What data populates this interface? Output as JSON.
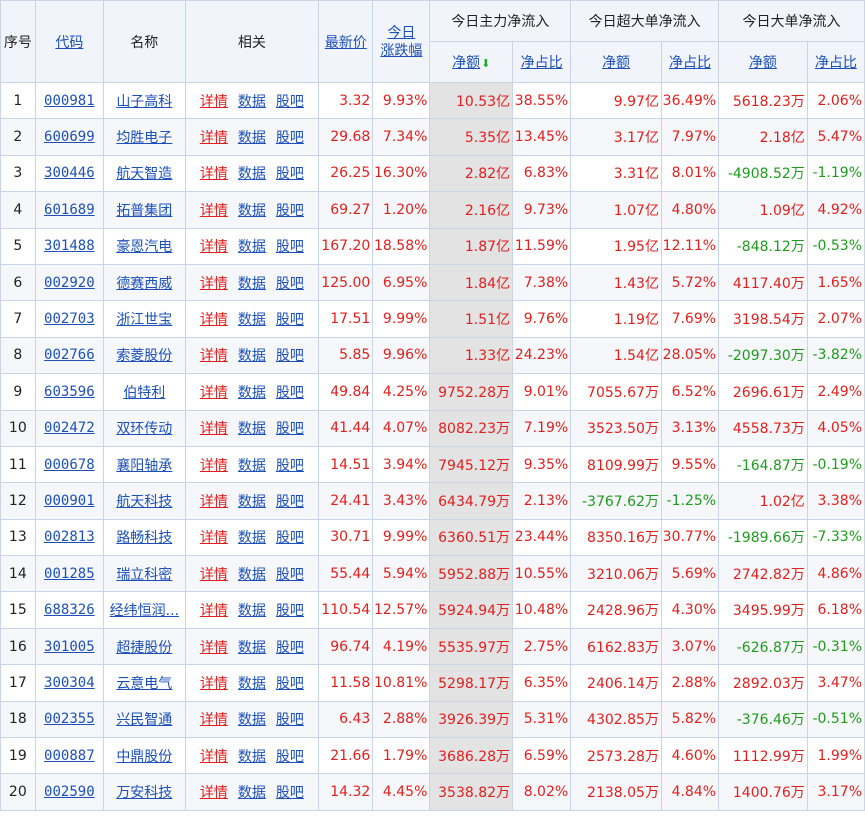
{
  "header": {
    "seq": "序号",
    "code": "代码",
    "name": "名称",
    "related": "相关",
    "price": "最新价",
    "change_top": "今日",
    "change_bottom": "涨跌幅",
    "main_group": "今日主力净流入",
    "super_group": "今日超大单净流入",
    "big_group": "今日大单净流入",
    "net_amount": "净额",
    "net_ratio": "净占比",
    "sort_icon": "down-arrow-icon"
  },
  "links": {
    "detail": "详情",
    "data": "数据",
    "forum": "股吧"
  },
  "colors": {
    "up": "#e0201e",
    "down": "#1e9b1e",
    "link": "#1d50b8",
    "sorted_column": "#e3e3e3"
  },
  "rows": [
    {
      "seq": "1",
      "code": "000981",
      "name": "山子高科",
      "price": "3.32",
      "chg": "9.93%",
      "main_amt": "10.53亿",
      "main_pct": "38.55%",
      "super_amt": "9.97亿",
      "super_pct": "36.49%",
      "big_amt": "5618.23万",
      "big_pct": "2.06%"
    },
    {
      "seq": "2",
      "code": "600699",
      "name": "均胜电子",
      "price": "29.68",
      "chg": "7.34%",
      "main_amt": "5.35亿",
      "main_pct": "13.45%",
      "super_amt": "3.17亿",
      "super_pct": "7.97%",
      "big_amt": "2.18亿",
      "big_pct": "5.47%"
    },
    {
      "seq": "3",
      "code": "300446",
      "name": "航天智造",
      "price": "26.25",
      "chg": "16.30%",
      "main_amt": "2.82亿",
      "main_pct": "6.83%",
      "super_amt": "3.31亿",
      "super_pct": "8.01%",
      "big_amt": "-4908.52万",
      "big_pct": "-1.19%"
    },
    {
      "seq": "4",
      "code": "601689",
      "name": "拓普集团",
      "price": "69.27",
      "chg": "1.20%",
      "main_amt": "2.16亿",
      "main_pct": "9.73%",
      "super_amt": "1.07亿",
      "super_pct": "4.80%",
      "big_amt": "1.09亿",
      "big_pct": "4.92%"
    },
    {
      "seq": "5",
      "code": "301488",
      "name": "豪恩汽电",
      "price": "167.20",
      "chg": "18.58%",
      "main_amt": "1.87亿",
      "main_pct": "11.59%",
      "super_amt": "1.95亿",
      "super_pct": "12.11%",
      "big_amt": "-848.12万",
      "big_pct": "-0.53%"
    },
    {
      "seq": "6",
      "code": "002920",
      "name": "德赛西威",
      "price": "125.00",
      "chg": "6.95%",
      "main_amt": "1.84亿",
      "main_pct": "7.38%",
      "super_amt": "1.43亿",
      "super_pct": "5.72%",
      "big_amt": "4117.40万",
      "big_pct": "1.65%"
    },
    {
      "seq": "7",
      "code": "002703",
      "name": "浙江世宝",
      "price": "17.51",
      "chg": "9.99%",
      "main_amt": "1.51亿",
      "main_pct": "9.76%",
      "super_amt": "1.19亿",
      "super_pct": "7.69%",
      "big_amt": "3198.54万",
      "big_pct": "2.07%"
    },
    {
      "seq": "8",
      "code": "002766",
      "name": "索菱股份",
      "price": "5.85",
      "chg": "9.96%",
      "main_amt": "1.33亿",
      "main_pct": "24.23%",
      "super_amt": "1.54亿",
      "super_pct": "28.05%",
      "big_amt": "-2097.30万",
      "big_pct": "-3.82%"
    },
    {
      "seq": "9",
      "code": "603596",
      "name": "伯特利",
      "price": "49.84",
      "chg": "4.25%",
      "main_amt": "9752.28万",
      "main_pct": "9.01%",
      "super_amt": "7055.67万",
      "super_pct": "6.52%",
      "big_amt": "2696.61万",
      "big_pct": "2.49%"
    },
    {
      "seq": "10",
      "code": "002472",
      "name": "双环传动",
      "price": "41.44",
      "chg": "4.07%",
      "main_amt": "8082.23万",
      "main_pct": "7.19%",
      "super_amt": "3523.50万",
      "super_pct": "3.13%",
      "big_amt": "4558.73万",
      "big_pct": "4.05%"
    },
    {
      "seq": "11",
      "code": "000678",
      "name": "襄阳轴承",
      "price": "14.51",
      "chg": "3.94%",
      "main_amt": "7945.12万",
      "main_pct": "9.35%",
      "super_amt": "8109.99万",
      "super_pct": "9.55%",
      "big_amt": "-164.87万",
      "big_pct": "-0.19%"
    },
    {
      "seq": "12",
      "code": "000901",
      "name": "航天科技",
      "price": "24.41",
      "chg": "3.43%",
      "main_amt": "6434.79万",
      "main_pct": "2.13%",
      "super_amt": "-3767.62万",
      "super_pct": "-1.25%",
      "big_amt": "1.02亿",
      "big_pct": "3.38%"
    },
    {
      "seq": "13",
      "code": "002813",
      "name": "路畅科技",
      "price": "30.71",
      "chg": "9.99%",
      "main_amt": "6360.51万",
      "main_pct": "23.44%",
      "super_amt": "8350.16万",
      "super_pct": "30.77%",
      "big_amt": "-1989.66万",
      "big_pct": "-7.33%"
    },
    {
      "seq": "14",
      "code": "001285",
      "name": "瑞立科密",
      "price": "55.44",
      "chg": "5.94%",
      "main_amt": "5952.88万",
      "main_pct": "10.55%",
      "super_amt": "3210.06万",
      "super_pct": "5.69%",
      "big_amt": "2742.82万",
      "big_pct": "4.86%"
    },
    {
      "seq": "15",
      "code": "688326",
      "name": "经纬恒润...",
      "price": "110.54",
      "chg": "12.57%",
      "main_amt": "5924.94万",
      "main_pct": "10.48%",
      "super_amt": "2428.96万",
      "super_pct": "4.30%",
      "big_amt": "3495.99万",
      "big_pct": "6.18%"
    },
    {
      "seq": "16",
      "code": "301005",
      "name": "超捷股份",
      "price": "96.74",
      "chg": "4.19%",
      "main_amt": "5535.97万",
      "main_pct": "2.75%",
      "super_amt": "6162.83万",
      "super_pct": "3.07%",
      "big_amt": "-626.87万",
      "big_pct": "-0.31%"
    },
    {
      "seq": "17",
      "code": "300304",
      "name": "云意电气",
      "price": "11.58",
      "chg": "10.81%",
      "main_amt": "5298.17万",
      "main_pct": "6.35%",
      "super_amt": "2406.14万",
      "super_pct": "2.88%",
      "big_amt": "2892.03万",
      "big_pct": "3.47%"
    },
    {
      "seq": "18",
      "code": "002355",
      "name": "兴民智通",
      "price": "6.43",
      "chg": "2.88%",
      "main_amt": "3926.39万",
      "main_pct": "5.31%",
      "super_amt": "4302.85万",
      "super_pct": "5.82%",
      "big_amt": "-376.46万",
      "big_pct": "-0.51%"
    },
    {
      "seq": "19",
      "code": "000887",
      "name": "中鼎股份",
      "price": "21.66",
      "chg": "1.79%",
      "main_amt": "3686.28万",
      "main_pct": "6.59%",
      "super_amt": "2573.28万",
      "super_pct": "4.60%",
      "big_amt": "1112.99万",
      "big_pct": "1.99%"
    },
    {
      "seq": "20",
      "code": "002590",
      "name": "万安科技",
      "price": "14.32",
      "chg": "4.45%",
      "main_amt": "3538.82万",
      "main_pct": "8.02%",
      "super_amt": "2138.05万",
      "super_pct": "4.84%",
      "big_amt": "1400.76万",
      "big_pct": "3.17%"
    }
  ]
}
